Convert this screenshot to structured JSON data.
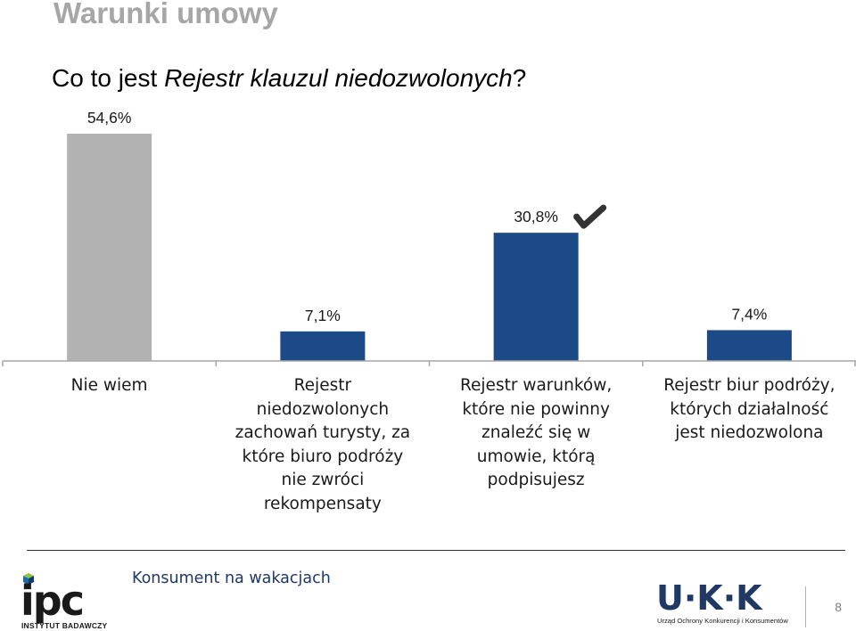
{
  "header": {
    "title": "Warunki umowy",
    "question_prefix": "Co to jest ",
    "question_emphasis": "Rejestr klauzul niedozwolonych",
    "question_suffix": "?"
  },
  "chart_data": {
    "type": "bar",
    "title": "",
    "xlabel": "",
    "ylabel": "",
    "categories": [
      "Nie wiem",
      "Rejestr niedozwolonych zachowań turysty, za które biuro podróży nie zwróci rekompensaty",
      "Rejestr warunków, które nie powinny znaleźć się w umowie, którą podpisujesz",
      "Rejestr biur podróży, których działalność jest niedozwolona"
    ],
    "category_lines": [
      [
        "Nie wiem"
      ],
      [
        "Rejestr",
        "niedozwolonych",
        "zachowań turysty, za",
        "które biuro podróży",
        "nie zwróci",
        "rekompensaty"
      ],
      [
        "Rejestr warunków,",
        "które nie powinny",
        "znaleźć się w",
        "umowie, którą",
        "podpisujesz"
      ],
      [
        "Rejestr biur podróży,",
        "których działalność",
        "jest niedozwolona"
      ]
    ],
    "values": [
      54.6,
      7.1,
      30.8,
      7.4
    ],
    "value_labels": [
      "54,6%",
      "7,1%",
      "30,8%",
      "7,4%"
    ],
    "unit": "%",
    "bar_colors": [
      "#b2b2b2",
      "#1b4a86",
      "#1b4a86",
      "#1b4a86"
    ],
    "correct_index": 2,
    "ylim": [
      0,
      54.6
    ],
    "grid": false,
    "legend": "none"
  },
  "footer": {
    "text": "Konsument na wakacjach",
    "left_logo_text": "ipc",
    "left_logo_caption": "INSTYTUT BADAWCZY",
    "right_logo_text": "U·K·K",
    "right_logo_caption": "Urząd Ochrony Konkurencji i Konsumentów",
    "page_number": "8"
  },
  "icons": {
    "correct_answer": "check-mark-icon",
    "left_logo": "ipc-logo-icon",
    "right_logo": "uokik-logo-icon"
  }
}
